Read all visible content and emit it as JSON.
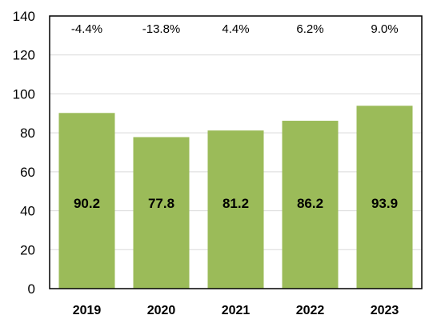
{
  "chart_data": {
    "type": "bar",
    "categories": [
      "2019",
      "2020",
      "2021",
      "2022",
      "2023"
    ],
    "values": [
      90.2,
      77.8,
      81.2,
      86.2,
      93.9
    ],
    "value_labels": [
      "90.2",
      "77.8",
      "81.2",
      "86.2",
      "93.9"
    ],
    "annotations": [
      "-4.4%",
      "-13.8%",
      "4.4%",
      "6.2%",
      "9.0%"
    ],
    "yticks": [
      "0",
      "20",
      "40",
      "60",
      "80",
      "100",
      "120",
      "140"
    ],
    "ylim": [
      0,
      140
    ],
    "title": "",
    "xlabel": "",
    "ylabel": "",
    "grid": true,
    "legend": "none",
    "colors": {
      "bar": "#9BBB59",
      "grid": "#D9D9D9",
      "axis": "#000000"
    }
  }
}
